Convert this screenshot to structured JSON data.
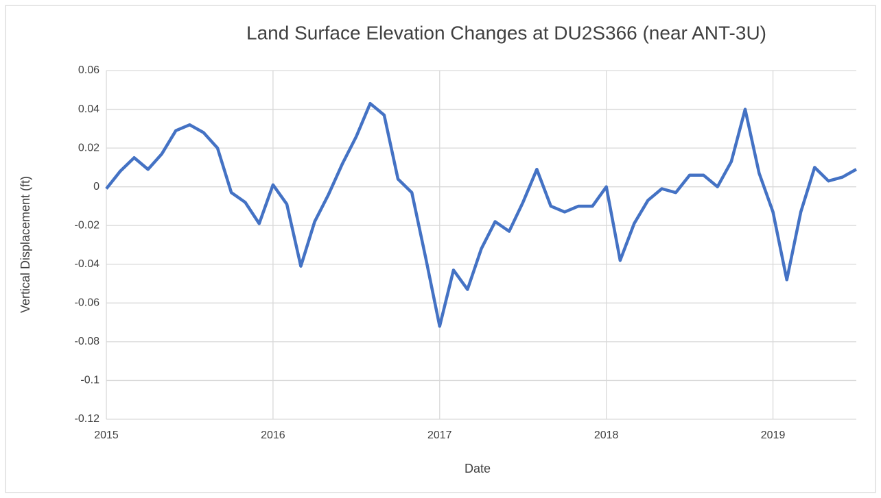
{
  "chart_data": {
    "type": "line",
    "title": "Land Surface Elevation Changes at DU2S366 (near ANT-3U)",
    "x_label": "Date",
    "y_label": "Vertical Displacement (ft)",
    "x": [
      2015,
      2015.083,
      2015.167,
      2015.25,
      2015.333,
      2015.417,
      2015.5,
      2015.583,
      2015.667,
      2015.75,
      2015.833,
      2015.917,
      2016,
      2016.083,
      2016.167,
      2016.25,
      2016.333,
      2016.417,
      2016.5,
      2016.583,
      2016.667,
      2016.75,
      2016.833,
      2016.917,
      2017,
      2017.083,
      2017.167,
      2017.25,
      2017.333,
      2017.417,
      2017.5,
      2017.583,
      2017.667,
      2017.75,
      2017.833,
      2017.917,
      2018,
      2018.083,
      2018.167,
      2018.25,
      2018.333,
      2018.417,
      2018.5,
      2018.583,
      2018.667,
      2018.75,
      2018.833,
      2018.917,
      2019,
      2019.083,
      2019.167,
      2019.25,
      2019.333,
      2019.417,
      2019.5
    ],
    "series": [
      {
        "name": "Vertical Displacement",
        "color": "#4472c4",
        "values": [
          -0.001,
          0.008,
          0.015,
          0.009,
          0.017,
          0.029,
          0.032,
          0.028,
          0.02,
          -0.003,
          -0.008,
          -0.019,
          0.001,
          -0.009,
          -0.041,
          -0.018,
          -0.004,
          0.012,
          0.026,
          0.043,
          0.037,
          0.004,
          -0.003,
          -0.037,
          -0.072,
          -0.043,
          -0.053,
          -0.032,
          -0.018,
          -0.023,
          -0.008,
          0.009,
          -0.01,
          -0.013,
          -0.01,
          -0.01,
          0,
          -0.038,
          -0.019,
          -0.007,
          -0.001,
          -0.003,
          0.006,
          0.006,
          0,
          0.013,
          0.04,
          0.007,
          -0.013,
          -0.048,
          -0.013,
          0.01,
          0.003,
          0.005,
          0.009
        ]
      }
    ],
    "xlim": [
      2015,
      2019.5
    ],
    "xticks": [
      2015,
      2016,
      2017,
      2018,
      2019
    ],
    "ylim": [
      -0.12,
      0.06
    ],
    "yticks": [
      0.06,
      0.04,
      0.02,
      0,
      -0.02,
      -0.04,
      -0.06,
      -0.08,
      -0.1,
      -0.12
    ],
    "grid": true
  }
}
